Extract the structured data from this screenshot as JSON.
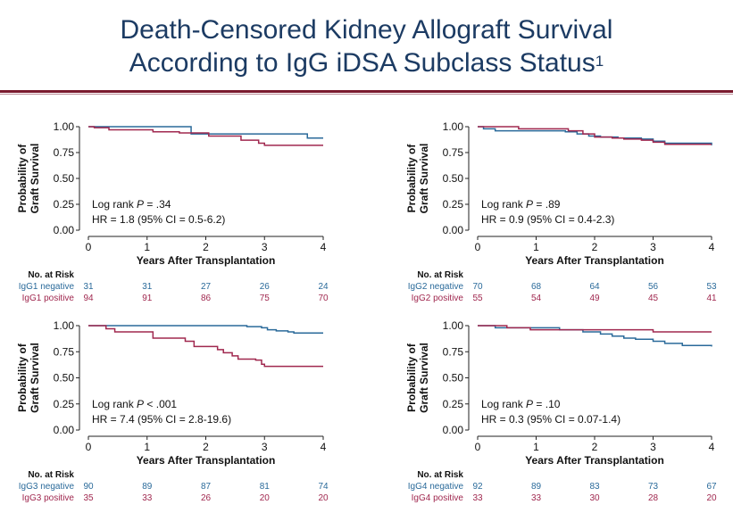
{
  "title": {
    "line1": "Death-Censored Kidney Allograft Survival",
    "line2": "According to IgG iDSA Subclass Status",
    "superscript": "1"
  },
  "colors": {
    "negative": "#2a6a9a",
    "positive": "#a0284f",
    "title": "#1c3b63",
    "rule": "#7a1a2e"
  },
  "chart_data": [
    {
      "type": "line",
      "panel": "IgG1",
      "ylabel_line1": "Probability of",
      "ylabel_line2": "Graft Survival",
      "xlabel": "Years After Transplantation",
      "xlim": [
        0,
        4
      ],
      "ylim": [
        0,
        1
      ],
      "xticks": [
        "0",
        "1",
        "2",
        "3",
        "4"
      ],
      "yticks": [
        "0.00",
        "0.25",
        "0.50",
        "0.75",
        "1.00"
      ],
      "stat_prefix": "Log rank ",
      "stat_p": "P",
      "stat_value": " = .34",
      "hr": "HR = 1.8 (95% CI = 0.5-6.2)",
      "risk_header": "No. at Risk",
      "series": [
        {
          "name": "IgG1 negative",
          "x": [
            0,
            1.75,
            3.73,
            4.0
          ],
          "y": [
            1.0,
            0.93,
            0.89,
            0.89
          ],
          "at_risk": [
            "31",
            "31",
            "27",
            "26",
            "24"
          ]
        },
        {
          "name": "IgG1 positive",
          "x": [
            0,
            0.1,
            0.35,
            1.1,
            1.55,
            2.05,
            2.6,
            2.9,
            3.0,
            4.0
          ],
          "y": [
            1.0,
            0.99,
            0.97,
            0.95,
            0.94,
            0.91,
            0.87,
            0.84,
            0.82,
            0.82
          ],
          "at_risk": [
            "94",
            "91",
            "86",
            "75",
            "70"
          ]
        }
      ]
    },
    {
      "type": "line",
      "panel": "IgG2",
      "ylabel_line1": "Probability of",
      "ylabel_line2": "Graft Survival",
      "xlabel": "Years After Transplantation",
      "xlim": [
        0,
        4
      ],
      "ylim": [
        0,
        1
      ],
      "xticks": [
        "0",
        "1",
        "2",
        "3",
        "4"
      ],
      "yticks": [
        "0.00",
        "0.25",
        "0.50",
        "0.75",
        "1.00"
      ],
      "stat_prefix": "Log rank ",
      "stat_p": "P",
      "stat_value": " = .89",
      "hr": "HR = 0.9 (95% CI = 0.4-2.3)",
      "risk_header": "No. at Risk",
      "series": [
        {
          "name": "IgG2 negative",
          "x": [
            0,
            0.1,
            0.3,
            1.5,
            1.7,
            1.9,
            2.1,
            2.4,
            2.8,
            3.0,
            3.2,
            4.0
          ],
          "y": [
            1.0,
            0.98,
            0.96,
            0.95,
            0.93,
            0.91,
            0.9,
            0.89,
            0.88,
            0.86,
            0.84,
            0.82
          ],
          "at_risk": [
            "70",
            "68",
            "64",
            "56",
            "53"
          ]
        },
        {
          "name": "IgG2 positive",
          "x": [
            0,
            0.7,
            1.55,
            1.8,
            2.0,
            2.3,
            2.5,
            2.8,
            3.0,
            3.2,
            4.0
          ],
          "y": [
            1.0,
            0.98,
            0.96,
            0.93,
            0.9,
            0.89,
            0.88,
            0.87,
            0.85,
            0.83,
            0.83
          ],
          "at_risk": [
            "55",
            "54",
            "49",
            "45",
            "41"
          ]
        }
      ]
    },
    {
      "type": "line",
      "panel": "IgG3",
      "ylabel_line1": "Probability of",
      "ylabel_line2": "Graft Survival",
      "xlabel": "Years After Transplantation",
      "xlim": [
        0,
        4
      ],
      "ylim": [
        0,
        1
      ],
      "xticks": [
        "0",
        "1",
        "2",
        "3",
        "4"
      ],
      "yticks": [
        "0.00",
        "0.25",
        "0.50",
        "0.75",
        "1.00"
      ],
      "stat_prefix": "Log rank ",
      "stat_p": "P",
      "stat_value": " < .001",
      "hr": "HR = 7.4 (95% CI = 2.8-19.6)",
      "risk_header": "No. at Risk",
      "series": [
        {
          "name": "IgG3 negative",
          "x": [
            0,
            2.7,
            2.95,
            3.05,
            3.2,
            3.4,
            3.5,
            4.0
          ],
          "y": [
            1.0,
            0.99,
            0.98,
            0.96,
            0.95,
            0.94,
            0.93,
            0.93
          ],
          "at_risk": [
            "90",
            "89",
            "87",
            "81",
            "74"
          ]
        },
        {
          "name": "IgG3 positive",
          "x": [
            0,
            0.3,
            0.45,
            1.1,
            1.65,
            1.8,
            2.2,
            2.3,
            2.45,
            2.55,
            2.85,
            2.95,
            3.0,
            4.0
          ],
          "y": [
            1.0,
            0.97,
            0.94,
            0.88,
            0.85,
            0.8,
            0.77,
            0.74,
            0.71,
            0.68,
            0.67,
            0.63,
            0.61,
            0.61
          ],
          "at_risk": [
            "35",
            "33",
            "26",
            "20",
            "20"
          ]
        }
      ]
    },
    {
      "type": "line",
      "panel": "IgG4",
      "ylabel_line1": "Probability of",
      "ylabel_line2": "Graft Survival",
      "xlabel": "Years After Transplantation",
      "xlim": [
        0,
        4
      ],
      "ylim": [
        0,
        1
      ],
      "xticks": [
        "0",
        "1",
        "2",
        "3",
        "4"
      ],
      "yticks": [
        "0.00",
        "0.25",
        "0.50",
        "0.75",
        "1.00"
      ],
      "stat_prefix": "Log rank ",
      "stat_p": "P",
      "stat_value": " = .10",
      "hr": "HR = 0.3 (95% CI = 0.07-1.4)",
      "risk_header": "No. at Risk",
      "series": [
        {
          "name": "IgG4 negative",
          "x": [
            0,
            0.3,
            1.4,
            1.8,
            2.1,
            2.3,
            2.5,
            2.7,
            3.0,
            3.2,
            3.5,
            4.0
          ],
          "y": [
            1.0,
            0.98,
            0.96,
            0.94,
            0.92,
            0.9,
            0.88,
            0.87,
            0.85,
            0.83,
            0.81,
            0.8
          ],
          "at_risk": [
            "92",
            "89",
            "83",
            "73",
            "67"
          ]
        },
        {
          "name": "IgG4 positive",
          "x": [
            0,
            0.5,
            0.9,
            3.0,
            4.0
          ],
          "y": [
            1.0,
            0.98,
            0.96,
            0.94,
            0.94
          ],
          "at_risk": [
            "33",
            "33",
            "30",
            "28",
            "20"
          ]
        }
      ]
    }
  ]
}
